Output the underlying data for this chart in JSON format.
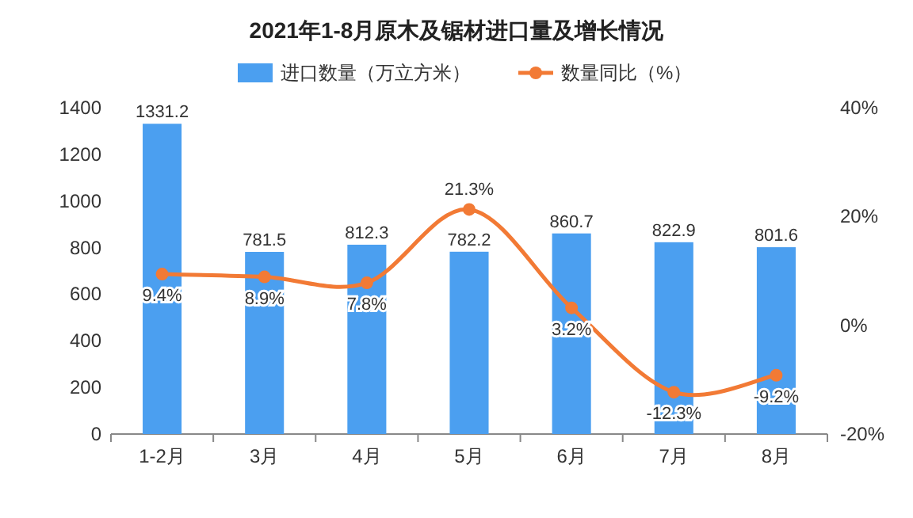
{
  "chart_data": {
    "type": "bar",
    "title": "2021年1-8月原木及锯材进口量及增长情况",
    "categories": [
      "1-2月",
      "3月",
      "4月",
      "5月",
      "6月",
      "7月",
      "8月"
    ],
    "series": [
      {
        "name": "进口数量（万立方米）",
        "color": "#4b9ff0",
        "values": [
          1331.2,
          781.5,
          812.3,
          782.2,
          860.7,
          822.9,
          801.6
        ]
      },
      {
        "name": "数量同比（%）",
        "type": "line",
        "axis": "y2",
        "color": "#f27a35",
        "marker": "circle",
        "values": [
          9.4,
          8.9,
          7.8,
          21.3,
          3.2,
          -12.3,
          -9.2
        ],
        "value_labels": [
          "9.4%",
          "8.9%",
          "7.8%",
          "21.3%",
          "3.2%",
          "-12.3%",
          "-9.2%"
        ]
      }
    ],
    "ylim": [
      0,
      1400
    ],
    "yticks": [
      0,
      200,
      400,
      600,
      800,
      1000,
      1200,
      1400
    ],
    "y2lim": [
      -20,
      40
    ],
    "y2ticks": [
      {
        "value": -20,
        "label": "-20%"
      },
      {
        "value": 0,
        "label": "0%"
      },
      {
        "value": 20,
        "label": "20%"
      },
      {
        "value": 40,
        "label": "40%"
      }
    ],
    "data_labels": true,
    "legend": "top",
    "grid": false
  }
}
